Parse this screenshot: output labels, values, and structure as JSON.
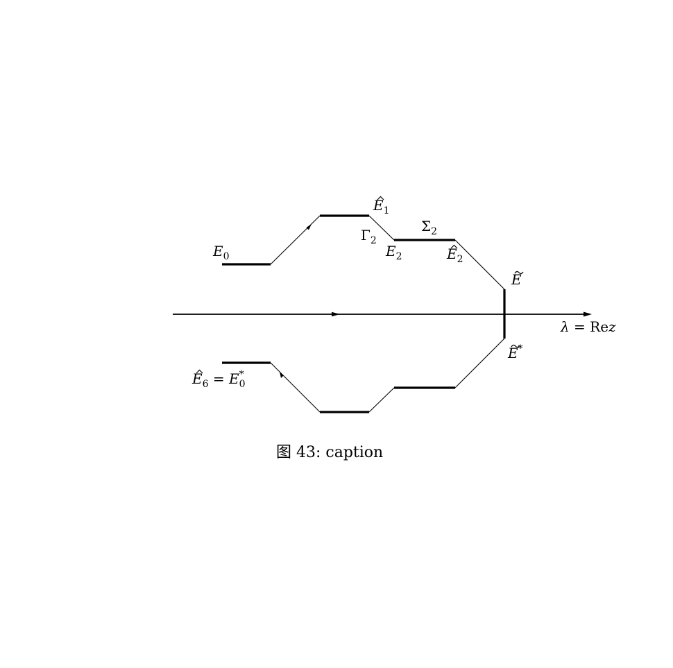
{
  "labels": {
    "e0": "E",
    "e0_sub": "0",
    "e1": "E",
    "e1_sub": "1",
    "gamma2": "Γ",
    "gamma2_sub": "2",
    "sigma2": "Σ",
    "sigma2_sub": "2",
    "e2": "E",
    "e2_sub": "2",
    "e2hat": "E",
    "e2hat_sub": "2",
    "etilde": "E",
    "etilde_star": "E",
    "star": "*",
    "e6_left": "E",
    "e6_sub": "6",
    "equals": " = ",
    "e6_right": "E",
    "e6_right_sub": "0",
    "axis_lambda": "λ",
    "axis_re": "Re",
    "axis_z": "z"
  },
  "caption": "图 43: caption"
}
